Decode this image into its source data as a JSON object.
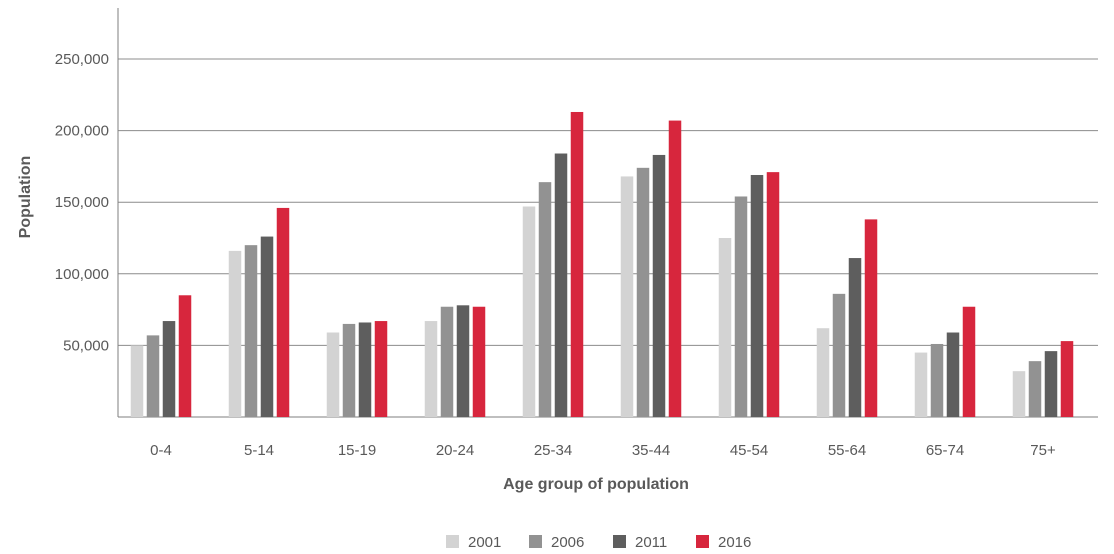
{
  "chart_data": {
    "type": "bar",
    "title": "",
    "xlabel": "Age group of population",
    "ylabel": "Population",
    "ylim": [
      0,
      250000
    ],
    "yticks": [
      50000,
      100000,
      150000,
      200000,
      250000
    ],
    "ytick_labels": [
      "50,000",
      "100,000",
      "150,000",
      "200,000",
      "250,000"
    ],
    "grid": true,
    "legend_position": "bottom",
    "categories": [
      "0-4",
      "5-14",
      "15-19",
      "20-24",
      "25-34",
      "35-44",
      "45-54",
      "55-64",
      "65-74",
      "75+"
    ],
    "series": [
      {
        "name": "2001",
        "color": "#d3d3d3",
        "values": [
          50000,
          116000,
          59000,
          67000,
          147000,
          168000,
          125000,
          62000,
          45000,
          32000
        ]
      },
      {
        "name": "2006",
        "color": "#929292",
        "values": [
          57000,
          120000,
          65000,
          77000,
          164000,
          174000,
          154000,
          86000,
          51000,
          39000
        ]
      },
      {
        "name": "2011",
        "color": "#5e5e5e",
        "values": [
          67000,
          126000,
          66000,
          78000,
          184000,
          183000,
          169000,
          111000,
          59000,
          46000
        ]
      },
      {
        "name": "2016",
        "color": "#d7263d",
        "values": [
          85000,
          146000,
          67000,
          77000,
          213000,
          207000,
          171000,
          138000,
          77000,
          53000
        ]
      }
    ]
  }
}
